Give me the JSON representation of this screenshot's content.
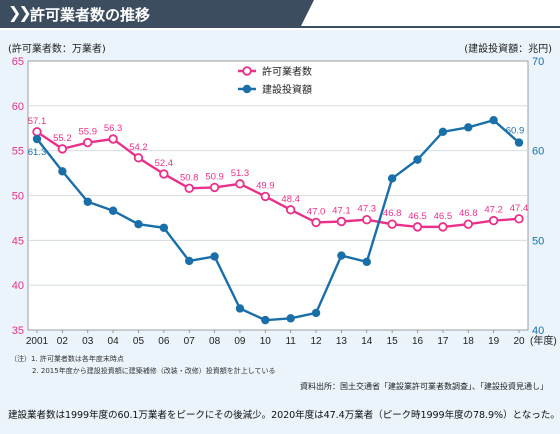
{
  "header": {
    "title": "許可業者数の推移"
  },
  "chart_data": {
    "type": "line",
    "left_axis_label": "(許可業者数：万業者)",
    "right_axis_label": "(建設投資額：兆円)",
    "x_unit_label": "(年度)",
    "categories": [
      "2001",
      "02",
      "03",
      "04",
      "05",
      "06",
      "07",
      "08",
      "09",
      "10",
      "11",
      "12",
      "13",
      "14",
      "15",
      "16",
      "17",
      "18",
      "19",
      "20"
    ],
    "left_ylim": [
      35,
      65
    ],
    "left_yticks": [
      35,
      40,
      45,
      50,
      55,
      60,
      65
    ],
    "right_ylim": [
      40,
      70
    ],
    "right_yticks": [
      40,
      50,
      60,
      70
    ],
    "grid": true,
    "legend_position": "top-center",
    "series": [
      {
        "name": "許可業者数",
        "axis": "left",
        "color": "#e8318a",
        "values": [
          57.1,
          55.2,
          55.9,
          56.3,
          54.2,
          52.4,
          50.8,
          50.9,
          51.3,
          49.9,
          48.4,
          47.0,
          47.1,
          47.3,
          46.8,
          46.5,
          46.5,
          46.8,
          47.2,
          47.4
        ],
        "labels": [
          "57.1",
          "55.2",
          "55.9",
          "56.3",
          "54.2",
          "52.4",
          "50.8",
          "50.9",
          "51.3",
          "49.9",
          "48.4",
          "47.0",
          "47.1",
          "47.3",
          "46.8",
          "46.5",
          "46.5",
          "46.8",
          "47.2",
          "47.4"
        ]
      },
      {
        "name": "建設投資額",
        "axis": "right",
        "color": "#1a6fa8",
        "values": [
          61.3,
          57.7,
          54.3,
          53.3,
          51.8,
          51.4,
          47.7,
          48.2,
          42.4,
          41.1,
          41.3,
          41.9,
          48.3,
          47.6,
          56.9,
          59.0,
          62.1,
          62.6,
          63.4,
          60.9
        ],
        "labels": [
          "61.3",
          "",
          "",
          "",
          "",
          "",
          "",
          "",
          "",
          "",
          "",
          "",
          "",
          "",
          "",
          "",
          "",
          "",
          "",
          "60.9"
        ]
      }
    ]
  },
  "notes": {
    "line1": "（注）1. 許可業者数は各年度末時点",
    "line2": "2. 2015年度から建設投資額に建築補修（改装・改修）投資額を計上している"
  },
  "source": "資料出所：国土交通省「建設業許可業者数調査」、「建設投資見通し」",
  "summary": "建設業者数は1999年度の60.1万業者をピークにその後減少。2020年度は47.4万業者（ピーク時1999年度の78.9%）となった。"
}
